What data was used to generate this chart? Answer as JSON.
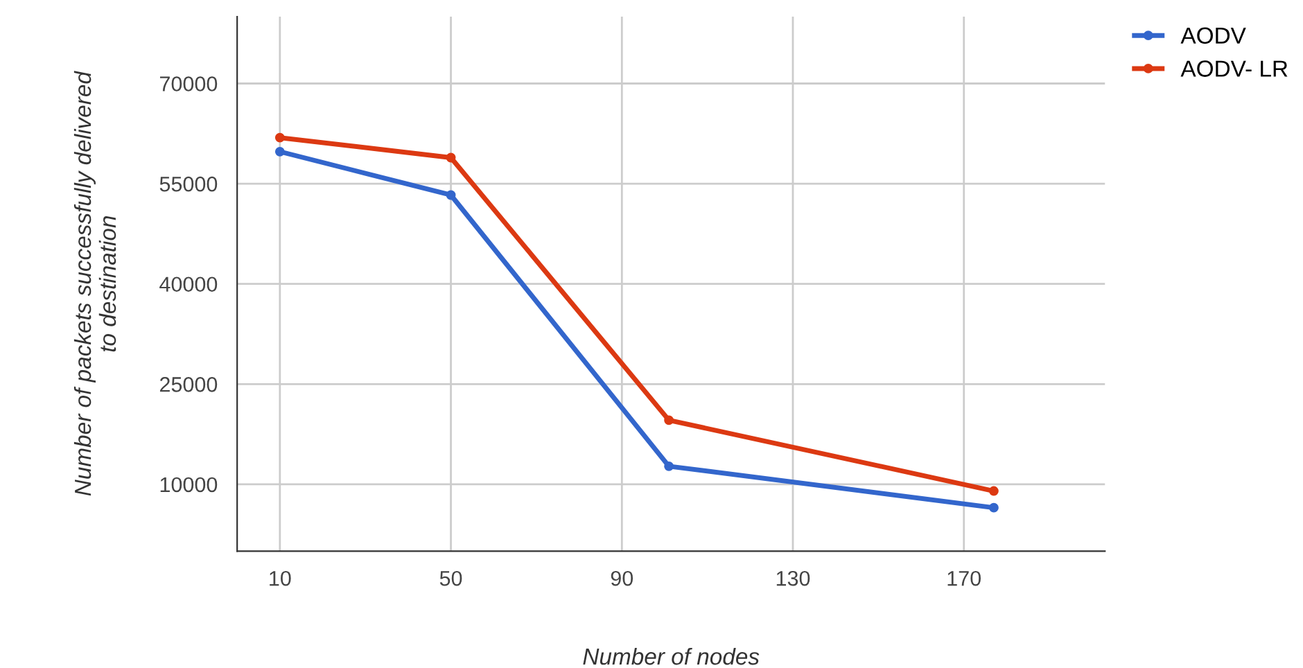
{
  "chart_data": {
    "type": "line",
    "xlabel": "Number of nodes",
    "ylabel": "Number of packets successfully delivered\nto destination",
    "xlim": [
      0,
      203
    ],
    "xticks": [
      10,
      50,
      90,
      130,
      170
    ],
    "ylim": [
      0,
      80000
    ],
    "yticks": [
      10000,
      25000,
      40000,
      55000,
      70000
    ],
    "grid": true,
    "legend": "top right",
    "marker": "circle",
    "line_style": "solid",
    "series": [
      {
        "name": "AODV",
        "color": "#3366cc",
        "x": [
          10,
          50,
          101,
          177
        ],
        "values": [
          59800,
          53300,
          12700,
          6500
        ]
      },
      {
        "name": "AODV- LR",
        "color": "#dc3912",
        "x": [
          10,
          50,
          101,
          177
        ],
        "values": [
          61900,
          58900,
          19600,
          9000
        ]
      }
    ]
  }
}
